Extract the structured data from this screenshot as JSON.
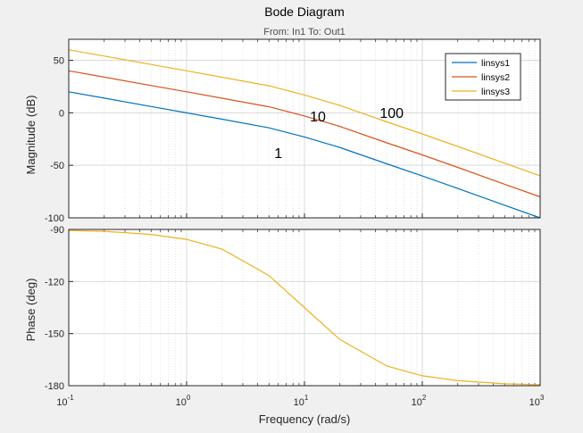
{
  "figure": {
    "title": "Bode Diagram",
    "subtitle": "From: In1  To: Out1",
    "xlabel": "Frequency  (rad/s)"
  },
  "chart_data": [
    {
      "type": "line",
      "panel": "magnitude",
      "ylabel": "Magnitude (dB)",
      "xscale": "log",
      "xlim": [
        0.1,
        1000
      ],
      "ylim": [
        -100,
        70
      ],
      "yticks": [
        -100,
        -50,
        0,
        50
      ],
      "xticks": [
        {
          "base": "10",
          "exp": "-1"
        },
        {
          "base": "10",
          "exp": "0"
        },
        {
          "base": "10",
          "exp": "1"
        },
        {
          "base": "10",
          "exp": "2"
        },
        {
          "base": "10",
          "exp": "3"
        }
      ],
      "grid": true,
      "legend_position": "top-right",
      "series": [
        {
          "name": "linsys1",
          "color": "#0072BD",
          "x": [
            0.1,
            0.2,
            0.5,
            1,
            2,
            5,
            10,
            20,
            50,
            100,
            200,
            500,
            1000
          ],
          "y": [
            20,
            14,
            6,
            0,
            -6.1,
            -14.3,
            -23,
            -33,
            -48.6,
            -60.1,
            -72,
            -88,
            -100
          ]
        },
        {
          "name": "linsys2",
          "color": "#D95319",
          "x": [
            0.1,
            0.2,
            0.5,
            1,
            2,
            5,
            10,
            20,
            50,
            100,
            200,
            500,
            1000
          ],
          "y": [
            40,
            34,
            26,
            20,
            13.9,
            5.7,
            -3,
            -13,
            -28.6,
            -40.1,
            -52,
            -68,
            -80
          ]
        },
        {
          "name": "linsys3",
          "color": "#EDB120",
          "x": [
            0.1,
            0.2,
            0.5,
            1,
            2,
            5,
            10,
            20,
            50,
            100,
            200,
            500,
            1000
          ],
          "y": [
            60,
            54,
            46,
            40,
            33.9,
            25.7,
            17,
            7,
            -8.6,
            -20.1,
            -32,
            -48,
            -60
          ]
        }
      ],
      "annotations": [
        {
          "text": "1",
          "x": 6,
          "y": -43
        },
        {
          "text": "10",
          "x": 13,
          "y": -8
        },
        {
          "text": "100",
          "x": 55,
          "y": -5
        }
      ]
    },
    {
      "type": "line",
      "panel": "phase",
      "ylabel": "Phase (deg)",
      "xscale": "log",
      "xlim": [
        0.1,
        1000
      ],
      "ylim": [
        -180,
        -90
      ],
      "yticks": [
        -180,
        -150,
        -120,
        -90
      ],
      "grid": true,
      "series": [
        {
          "color": "#EDB120",
          "x": [
            0.1,
            0.2,
            0.5,
            1,
            2,
            5,
            10,
            20,
            50,
            100,
            200,
            500,
            1000
          ],
          "y": [
            -90.6,
            -91.1,
            -92.9,
            -95.7,
            -101.3,
            -116.6,
            -135,
            -153.4,
            -168.7,
            -174.3,
            -177.1,
            -178.9,
            -179.4
          ]
        }
      ]
    }
  ]
}
